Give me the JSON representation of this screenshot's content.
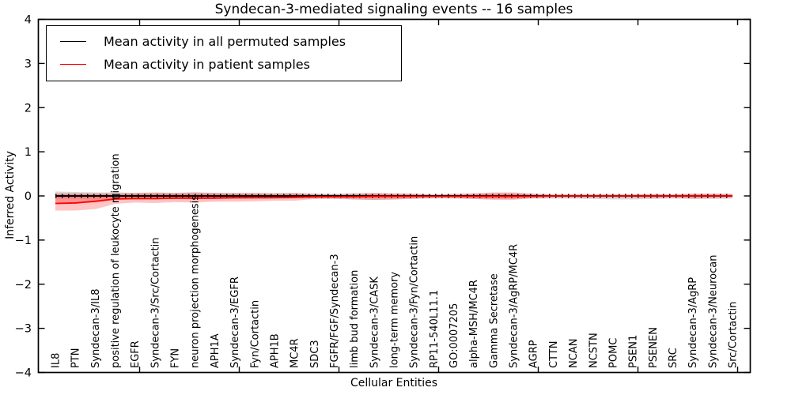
{
  "title": "Syndecan-3-mediated signaling events -- 16 samples",
  "colors": {
    "background": "#ffffff",
    "axis": "#000000",
    "permuted_line": "#000000",
    "patient_line": "#ff0000",
    "permuted_band": "#888888",
    "patient_band": "#ff1a1a"
  },
  "legend": {
    "items": [
      {
        "label": "Mean activity in all permuted samples",
        "color": "#000000"
      },
      {
        "label": "Mean activity in patient samples",
        "color": "#ff0000"
      }
    ]
  },
  "chart_data": {
    "type": "line",
    "title": "Syndecan-3-mediated signaling events -- 16 samples",
    "xlabel": "Cellular Entities",
    "ylabel": "Inferred Activity",
    "ylim": [
      -4,
      4
    ],
    "yticks": [
      4,
      3,
      2,
      1,
      0,
      -1,
      -2,
      -3,
      -4
    ],
    "grid": false,
    "legend_position": "upper left",
    "x_tick_label_rotation": 90,
    "zero_line_style": "dotted",
    "categories": [
      "IL8",
      "PTN",
      "Syndecan-3/IL8",
      "positive regulation of leukocyte migration",
      "EGFR",
      "Syndecan-3/Src/Cortactin",
      "FYN",
      "neuron projection morphogenesis",
      "APH1A",
      "Syndecan-3/EGFR",
      "Fyn/Cortactin",
      "APH1B",
      "MC4R",
      "SDC3",
      "FGFR/FGF/Syndecan-3",
      "limb bud formation",
      "Syndecan-3/CASK",
      "long-term memory",
      "Syndecan-3/Fyn/Cortactin",
      "RP11-540L11.1",
      "GO:0007205",
      "alpha-MSH/MC4R",
      "Gamma Secretase",
      "Syndecan-3/AgRP/MC4R",
      "AGRP",
      "CTTN",
      "NCAN",
      "NCSTN",
      "POMC",
      "PSEN1",
      "PSENEN",
      "SRC",
      "Syndecan-3/AgRP",
      "Syndecan-3/Neurocan",
      "Src/Cortactin"
    ],
    "series": [
      {
        "name": "Mean activity in all permuted samples",
        "color": "#000000",
        "values": [
          0,
          0,
          0,
          0,
          0,
          0,
          0,
          0,
          0,
          0,
          0,
          0,
          0,
          0,
          0,
          0,
          0,
          0,
          0,
          0,
          0,
          0,
          0,
          0,
          0,
          0,
          0,
          0,
          0,
          0,
          0,
          0,
          0,
          0,
          0
        ],
        "band_upper": [
          0.1,
          0.09,
          0.08,
          0.08,
          0.07,
          0.07,
          0.07,
          0.08,
          0.07,
          0.06,
          0.06,
          0.06,
          0.06,
          0.05,
          0.05,
          0.05,
          0.06,
          0.05,
          0.05,
          0.04,
          0.05,
          0.05,
          0.06,
          0.06,
          0.05,
          0.04,
          0.04,
          0.04,
          0.04,
          0.04,
          0.04,
          0.04,
          0.05,
          0.05,
          0.05
        ],
        "band_lower": [
          -0.06,
          -0.06,
          -0.06,
          -0.06,
          -0.06,
          -0.07,
          -0.06,
          -0.07,
          -0.06,
          -0.06,
          -0.06,
          -0.06,
          -0.06,
          -0.06,
          -0.07,
          -0.08,
          -0.09,
          -0.08,
          -0.07,
          -0.06,
          -0.06,
          -0.07,
          -0.07,
          -0.07,
          -0.06,
          -0.06,
          -0.06,
          -0.07,
          -0.08,
          -0.08,
          -0.07,
          -0.06,
          -0.07,
          -0.07,
          -0.06
        ]
      },
      {
        "name": "Mean activity in patient samples",
        "color": "#ff0000",
        "values": [
          -0.17,
          -0.16,
          -0.12,
          -0.07,
          -0.06,
          -0.06,
          -0.05,
          -0.05,
          -0.05,
          -0.04,
          -0.04,
          -0.04,
          -0.03,
          -0.02,
          -0.02,
          -0.02,
          -0.01,
          -0.01,
          -0.01,
          -0.01,
          -0.01,
          -0.01,
          -0.01,
          -0.01,
          -0.01,
          0,
          0,
          0,
          0,
          0,
          0,
          0,
          0,
          0,
          0
        ],
        "band_upper": [
          0.06,
          0.06,
          0.06,
          0.06,
          0.07,
          0.08,
          0.07,
          0.08,
          0.07,
          0.07,
          0.07,
          0.06,
          0.07,
          0.05,
          0.04,
          0.06,
          0.07,
          0.06,
          0.05,
          0.03,
          0.04,
          0.06,
          0.08,
          0.08,
          0.05,
          0.03,
          0.03,
          0.03,
          0.03,
          0.03,
          0.04,
          0.03,
          0.05,
          0.05,
          0.04
        ],
        "band_lower": [
          -0.33,
          -0.33,
          -0.3,
          -0.18,
          -0.15,
          -0.16,
          -0.14,
          -0.15,
          -0.13,
          -0.13,
          -0.12,
          -0.11,
          -0.11,
          -0.07,
          -0.06,
          -0.08,
          -0.09,
          -0.08,
          -0.06,
          -0.04,
          -0.05,
          -0.07,
          -0.09,
          -0.09,
          -0.05,
          -0.04,
          -0.04,
          -0.04,
          -0.04,
          -0.04,
          -0.05,
          -0.04,
          -0.06,
          -0.05,
          -0.04
        ]
      }
    ]
  }
}
